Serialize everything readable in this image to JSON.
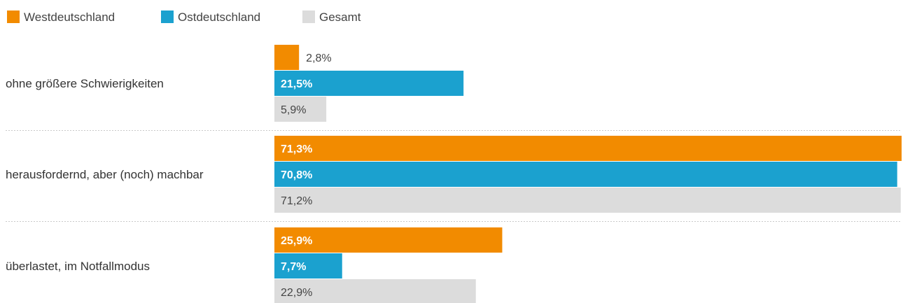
{
  "chart_data": {
    "type": "bar",
    "orientation": "horizontal",
    "categories": [
      "ohne größere Schwierigkeiten",
      "herausfordernd, aber (noch) machbar",
      "überlastet, im Notfallmodus"
    ],
    "series": [
      {
        "name": "Westdeutschland",
        "color": "#f28b00",
        "values": [
          2.8,
          71.3,
          25.9
        ],
        "labels": [
          "2,8%",
          "71,3%",
          "25,9%"
        ]
      },
      {
        "name": "Ostdeutschland",
        "color": "#1ba1cf",
        "values": [
          21.5,
          70.8,
          7.7
        ],
        "labels": [
          "21,5%",
          "70,8%",
          "7,7%"
        ]
      },
      {
        "name": "Gesamt",
        "color": "#dcdcdc",
        "values": [
          5.9,
          71.2,
          22.9
        ],
        "labels": [
          "5,9%",
          "71,2%",
          "22,9%"
        ]
      }
    ],
    "xlim": [
      0,
      71.3
    ],
    "legend_position": "top-left",
    "grid": false
  }
}
